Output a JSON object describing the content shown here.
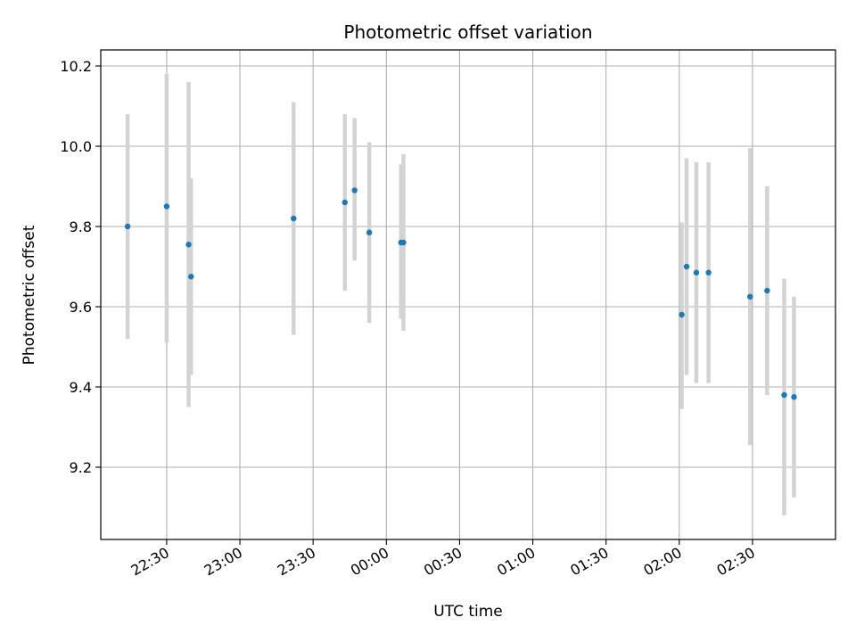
{
  "chart_data": {
    "type": "scatter",
    "title": "Photometric offset variation",
    "xlabel": "UTC time",
    "ylabel": "Photometric offset",
    "x_ticks": [
      "22:30",
      "23:00",
      "23:30",
      "00:00",
      "00:30",
      "01:00",
      "01:30",
      "02:00",
      "02:30"
    ],
    "y_ticks": [
      "9.2",
      "9.4",
      "9.6",
      "9.8",
      "10.0",
      "10.2"
    ],
    "xlim": [
      "22:03",
      "03:04"
    ],
    "ylim": [
      9.02,
      10.24
    ],
    "grid": true,
    "point_color": "#1f77b4",
    "errorbar_color": "#d3d3d3",
    "points": [
      {
        "x": "22:14",
        "y": 9.8,
        "ylow": 9.52,
        "yhigh": 10.08
      },
      {
        "x": "22:30",
        "y": 9.85,
        "ylow": 9.51,
        "yhigh": 10.18
      },
      {
        "x": "22:39",
        "y": 9.755,
        "ylow": 9.35,
        "yhigh": 10.16
      },
      {
        "x": "22:40",
        "y": 9.675,
        "ylow": 9.43,
        "yhigh": 9.92
      },
      {
        "x": "23:22",
        "y": 9.82,
        "ylow": 9.53,
        "yhigh": 10.11
      },
      {
        "x": "23:43",
        "y": 9.86,
        "ylow": 9.64,
        "yhigh": 10.08
      },
      {
        "x": "23:47",
        "y": 9.89,
        "ylow": 9.715,
        "yhigh": 10.07
      },
      {
        "x": "23:53",
        "y": 9.785,
        "ylow": 9.56,
        "yhigh": 10.01
      },
      {
        "x": "00:06",
        "y": 9.76,
        "ylow": 9.57,
        "yhigh": 9.955
      },
      {
        "x": "00:07",
        "y": 9.76,
        "ylow": 9.54,
        "yhigh": 9.98
      },
      {
        "x": "02:01",
        "y": 9.58,
        "ylow": 9.345,
        "yhigh": 9.81
      },
      {
        "x": "02:03",
        "y": 9.7,
        "ylow": 9.43,
        "yhigh": 9.97
      },
      {
        "x": "02:07",
        "y": 9.685,
        "ylow": 9.41,
        "yhigh": 9.96
      },
      {
        "x": "02:12",
        "y": 9.685,
        "ylow": 9.41,
        "yhigh": 9.96
      },
      {
        "x": "02:29",
        "y": 9.625,
        "ylow": 9.255,
        "yhigh": 9.995
      },
      {
        "x": "02:36",
        "y": 9.64,
        "ylow": 9.38,
        "yhigh": 9.9
      },
      {
        "x": "02:43",
        "y": 9.38,
        "ylow": 9.08,
        "yhigh": 9.67
      },
      {
        "x": "02:47",
        "y": 9.375,
        "ylow": 9.125,
        "yhigh": 9.625
      }
    ]
  }
}
